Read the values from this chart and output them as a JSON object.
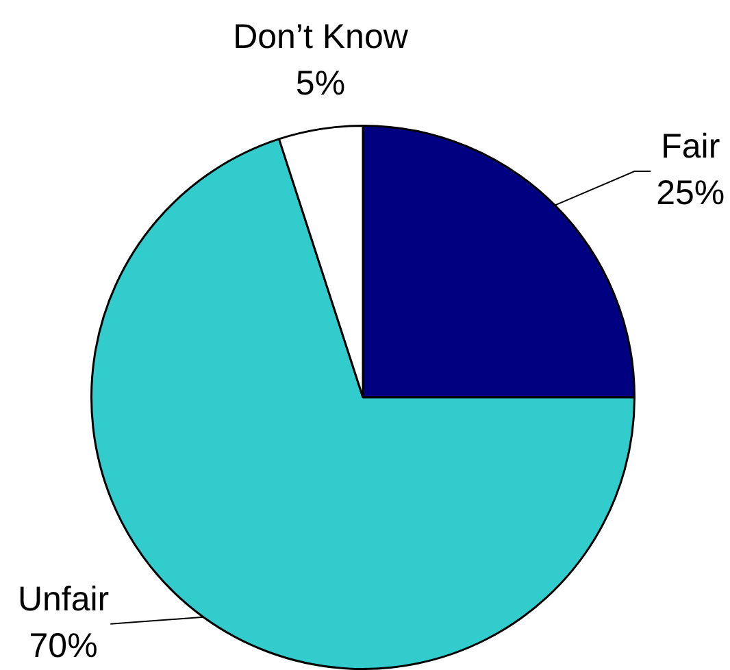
{
  "chart_data": {
    "type": "pie",
    "categories": [
      "Fair",
      "Unfair",
      "Don’t Know"
    ],
    "values": [
      25,
      70,
      5
    ],
    "colors": [
      "#000080",
      "#33cccc",
      "#ffffff"
    ],
    "value_labels": [
      "25%",
      "70%",
      "5%"
    ]
  }
}
